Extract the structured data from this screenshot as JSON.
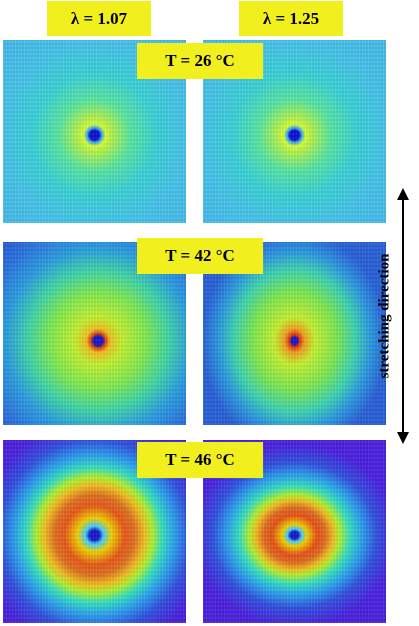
{
  "columns": {
    "left_label": "λ = 1.07",
    "right_label": "λ = 1.25"
  },
  "rows": [
    {
      "temperature_label": "T = 26 °C"
    },
    {
      "temperature_label": "T = 42 °C"
    },
    {
      "temperature_label": "T = 46 °C"
    }
  ],
  "side_label": "stretching direction",
  "colors": {
    "label_background": "#f2ef1f"
  }
}
